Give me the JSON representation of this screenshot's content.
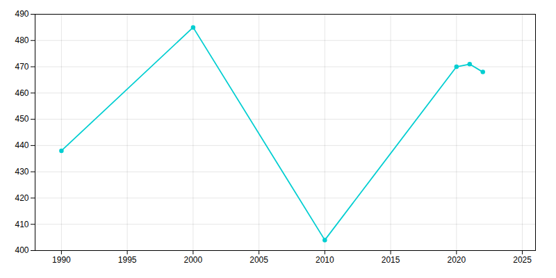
{
  "chart_data": {
    "type": "line",
    "x": [
      1990,
      2000,
      2010,
      2020,
      2021,
      2022
    ],
    "values": [
      438,
      485,
      404,
      470,
      471,
      468
    ],
    "color": "#00CED1",
    "marker": "circle",
    "xlim": [
      1988,
      2026
    ],
    "xticks": [
      1990,
      1995,
      2000,
      2005,
      2010,
      2015,
      2020,
      2025
    ],
    "ylim": [
      400,
      490
    ],
    "yticks": [
      400,
      410,
      420,
      430,
      440,
      450,
      460,
      470,
      480,
      490
    ],
    "grid": true
  }
}
